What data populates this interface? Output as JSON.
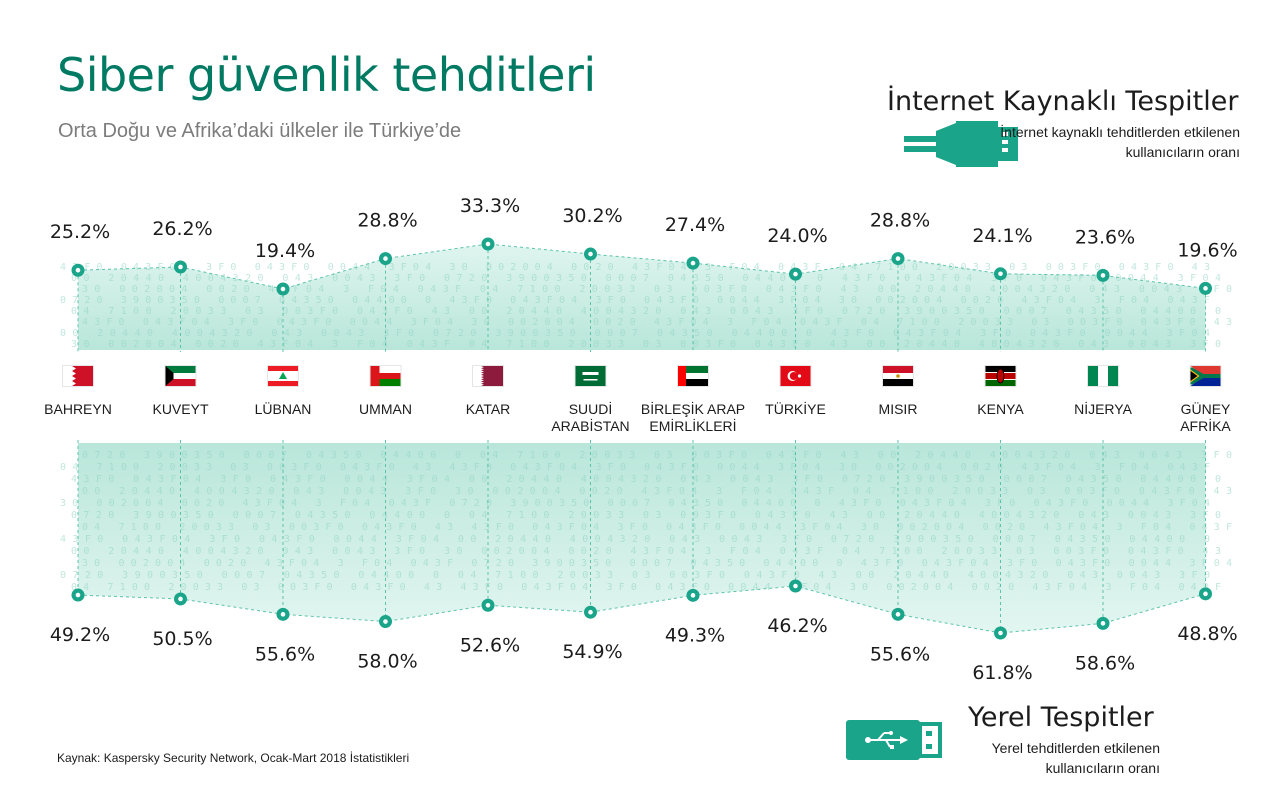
{
  "header": {
    "title": "Siber güvenlik tehditleri",
    "subtitle": "Orta Doğu ve Afrika’daki ülkeler ile Türkiye’de"
  },
  "legend": {
    "internet_title": "İnternet Kaynaklı Tespitler",
    "internet_desc": "İnternet kaynaklı tehditlerden etkilenen kullanıcıların oranı",
    "internet_icon": "ethernet-cable-icon",
    "local_title": "Yerel Tespitler",
    "local_desc": "Yerel tehditlerden etkilenen kullanıcıların oranı",
    "local_icon": "usb-stick-icon"
  },
  "source": "Kaynak: Kaspersky Security Network, Ocak-Mart 2018 İstatistikleri",
  "colors": {
    "brand": "#007a62",
    "accent": "#1aa58a",
    "band": "#cfeee6",
    "text": "#1c1c1c"
  },
  "chart_data": {
    "type": "line",
    "title": "Siber güvenlik tehditleri",
    "subtitle": "Orta Doğu ve Afrika’daki ülkeler ile Türkiye’de",
    "categories": [
      [
        "BAHREYN"
      ],
      [
        "KUVEYT"
      ],
      [
        "LÜBNAN"
      ],
      [
        "UMMAN"
      ],
      [
        "KATAR"
      ],
      [
        "SUUDİ",
        "ARABİSTAN"
      ],
      [
        "BİRLEŞİK ARAP",
        "EMİRLİKLERİ"
      ],
      [
        "TÜRKİYE"
      ],
      [
        "MISIR"
      ],
      [
        "KENYA"
      ],
      [
        "NİJERYA"
      ],
      [
        "GÜNEY",
        "AFRİKA"
      ]
    ],
    "flags": [
      "bahrain-flag-icon",
      "kuwait-flag-icon",
      "lebanon-flag-icon",
      "oman-flag-icon",
      "qatar-flag-icon",
      "saudi-arabia-flag-icon",
      "uae-flag-icon",
      "turkey-flag-icon",
      "egypt-flag-icon",
      "kenya-flag-icon",
      "nigeria-flag-icon",
      "south-africa-flag-icon"
    ],
    "series": [
      {
        "name": "İnternet Kaynaklı Tespitler",
        "values": [
          25.2,
          26.2,
          19.4,
          28.8,
          33.3,
          30.2,
          27.4,
          24.0,
          28.8,
          24.1,
          23.6,
          19.6
        ],
        "labels": [
          "25.2%",
          "26.2%",
          "19.4%",
          "28.8%",
          "33.3%",
          "30.2%",
          "27.4%",
          "24.0%",
          "28.8%",
          "24.1%",
          "23.6%",
          "19.6%"
        ]
      },
      {
        "name": "Yerel Tespitler",
        "values": [
          49.2,
          50.5,
          55.6,
          58.0,
          52.6,
          54.9,
          49.3,
          46.2,
          55.6,
          61.8,
          58.6,
          48.8
        ],
        "labels": [
          "49.2%",
          "50.5%",
          "55.6%",
          "58.0%",
          "52.6%",
          "54.9%",
          "49.3%",
          "46.2%",
          "55.6%",
          "61.8%",
          "58.6%",
          "48.8%"
        ]
      }
    ],
    "ylabel": "",
    "xlabel": "",
    "legend_position": "top-right / bottom-right",
    "grid": false
  }
}
